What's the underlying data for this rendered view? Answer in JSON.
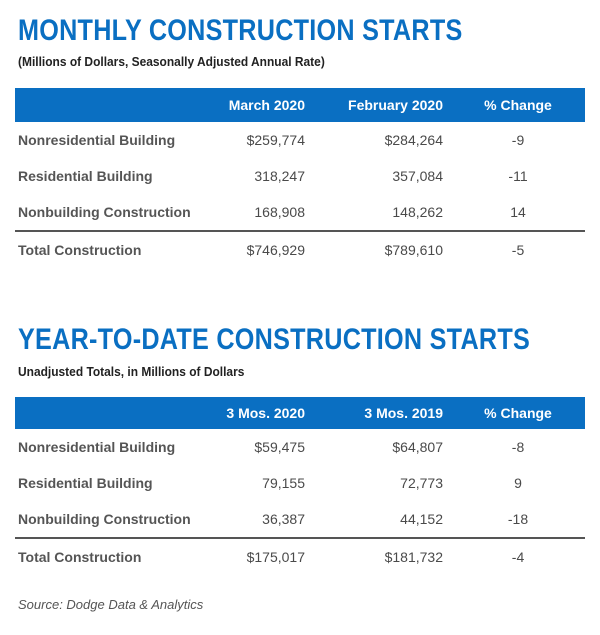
{
  "monthly": {
    "title": "MONTHLY CONSTRUCTION STARTS",
    "subtitle": "(Millions of Dollars, Seasonally Adjusted Annual Rate)",
    "headers": [
      "",
      "March 2020",
      "February 2020",
      "% Change"
    ],
    "rows": [
      {
        "label": "Nonresidential Building",
        "v1": "$259,774",
        "v2": "$284,264",
        "pct": "-9"
      },
      {
        "label": "Residential Building",
        "v1": "318,247",
        "v2": "357,084",
        "pct": "-11"
      },
      {
        "label": "Nonbuilding Construction",
        "v1": "168,908",
        "v2": "148,262",
        "pct": "14"
      }
    ],
    "total": {
      "label": "Total Construction",
      "v1": "$746,929",
      "v2": "$789,610",
      "pct": "-5"
    }
  },
  "ytd": {
    "title": "YEAR-TO-DATE CONSTRUCTION STARTS",
    "subtitle": "Unadjusted Totals, in Millions of Dollars",
    "headers": [
      "",
      "3 Mos. 2020",
      "3 Mos. 2019",
      "% Change"
    ],
    "rows": [
      {
        "label": "Nonresidential Building",
        "v1": "$59,475",
        "v2": "$64,807",
        "pct": "-8"
      },
      {
        "label": "Residential Building",
        "v1": "79,155",
        "v2": "72,773",
        "pct": "9"
      },
      {
        "label": "Nonbuilding Construction",
        "v1": "36,387",
        "v2": "44,152",
        "pct": "-18"
      }
    ],
    "total": {
      "label": "Total Construction",
      "v1": "$175,017",
      "v2": "$181,732",
      "pct": "-4"
    }
  },
  "source": "Source: Dodge Data & Analytics",
  "colors": {
    "accent": "#0a6fc2"
  }
}
